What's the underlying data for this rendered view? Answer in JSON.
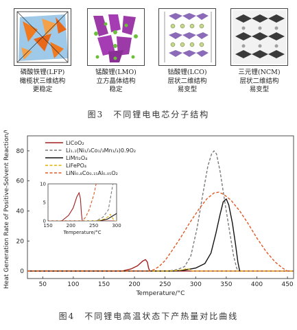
{
  "structures": [
    {
      "name": "磷酸铁锂(LFP)",
      "structure": "橄榄状三维结构",
      "stability": "更稳定"
    },
    {
      "name": "锰酸锂(LMO)",
      "structure": "立方晶体结构",
      "stability": "稳定"
    },
    {
      "name": "钴酸锂(LCO)",
      "structure": "层状二维结构",
      "stability": "易变型"
    },
    {
      "name": "三元锂(NCM)",
      "structure": "层状二维结构",
      "stability": "易变型"
    }
  ],
  "figure3_caption": "图3　不同锂电电芯分子结构",
  "figure4_caption": "图4　不同锂电高温状态下产热量对比曲线",
  "chart_data": {
    "type": "line",
    "xlabel": "Temperature/°C",
    "ylabel": "Heat Generation Rate of Positive-Solvent Reaction/W",
    "xlim": [
      25,
      460
    ],
    "ylim": [
      -5,
      90
    ],
    "xticks": [
      50,
      100,
      150,
      200,
      250,
      300,
      350,
      400,
      450
    ],
    "yticks": [
      0,
      20,
      40,
      60,
      80
    ],
    "grid": false,
    "legend_position": "top-left",
    "series": [
      {
        "name": "LiCoO₂",
        "color": "#a31f1f",
        "dash": "solid",
        "points": [
          [
            25,
            0
          ],
          [
            180,
            0
          ],
          [
            195,
            1.5
          ],
          [
            205,
            3.5
          ],
          [
            213,
            6.5
          ],
          [
            218,
            7.6
          ],
          [
            221,
            6
          ],
          [
            223,
            2
          ],
          [
            225,
            0
          ],
          [
            460,
            0
          ]
        ]
      },
      {
        "name": "Li₁.₁(Ni₁/₃Co₁/₃Mn₁/₃)0.9O₂",
        "color": "#7a7a7a",
        "dash": "dashed",
        "points": [
          [
            25,
            0
          ],
          [
            255,
            0
          ],
          [
            270,
            1
          ],
          [
            282,
            3
          ],
          [
            292,
            10
          ],
          [
            302,
            28
          ],
          [
            312,
            52
          ],
          [
            320,
            70
          ],
          [
            326,
            78
          ],
          [
            330,
            80
          ],
          [
            334,
            78
          ],
          [
            340,
            66
          ],
          [
            348,
            45
          ],
          [
            356,
            25
          ],
          [
            362,
            10
          ],
          [
            367,
            2
          ],
          [
            370,
            0
          ]
        ]
      },
      {
        "name": "LiMn₂O₄",
        "color": "#111111",
        "dash": "solid",
        "points": [
          [
            25,
            0
          ],
          [
            262,
            0
          ],
          [
            280,
            0.5
          ],
          [
            300,
            2
          ],
          [
            315,
            5
          ],
          [
            325,
            12
          ],
          [
            333,
            25
          ],
          [
            340,
            38
          ],
          [
            345,
            46
          ],
          [
            350,
            48
          ],
          [
            354,
            44
          ],
          [
            360,
            32
          ],
          [
            365,
            18
          ],
          [
            369,
            6
          ],
          [
            372,
            0
          ]
        ]
      },
      {
        "name": "LiFePO₄",
        "color": "#e0b000",
        "dash": "dashed",
        "points": [
          [
            25,
            0
          ],
          [
            250,
            0
          ],
          [
            265,
            0.2
          ],
          [
            275,
            0.6
          ],
          [
            282,
            1.2
          ],
          [
            286,
            1.8
          ],
          [
            290,
            1
          ],
          [
            295,
            0
          ],
          [
            460,
            0
          ]
        ]
      },
      {
        "name": "LiNi₀.₈Co₀.₁₅Al₀.₀₅O₂",
        "color": "#e25822",
        "dash": "dashed",
        "points": [
          [
            25,
            0
          ],
          [
            225,
            0
          ],
          [
            232,
            1
          ],
          [
            240,
            3
          ],
          [
            250,
            7
          ],
          [
            262,
            14
          ],
          [
            275,
            22
          ],
          [
            290,
            32
          ],
          [
            305,
            41
          ],
          [
            318,
            48
          ],
          [
            330,
            52
          ],
          [
            338,
            52.5
          ],
          [
            346,
            51
          ],
          [
            358,
            47
          ],
          [
            372,
            40
          ],
          [
            385,
            32
          ],
          [
            400,
            22
          ],
          [
            415,
            13
          ],
          [
            430,
            6
          ],
          [
            442,
            2
          ],
          [
            450,
            0
          ]
        ]
      }
    ],
    "inset": {
      "xlabel": "Temperature/°C",
      "xlim": [
        150,
        300
      ],
      "ylim": [
        0,
        10
      ],
      "xticks": [
        150,
        200,
        250,
        300
      ],
      "yticks": [
        0,
        5,
        10
      ]
    }
  }
}
